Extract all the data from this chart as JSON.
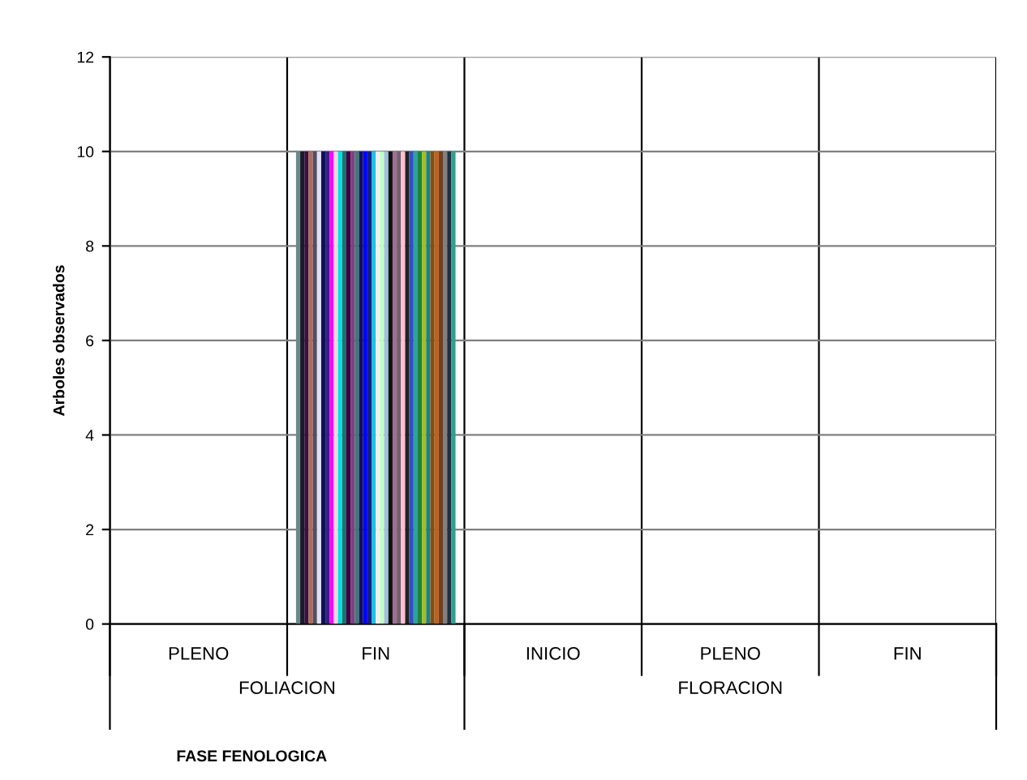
{
  "chart_data": {
    "type": "bar",
    "ylabel": "Arboles observados",
    "categories": [
      "PLENO",
      "FIN",
      "INICIO",
      "PLENO",
      "FIN"
    ],
    "annotations": [
      "FOLIACION",
      "FLORACION",
      "FASE FENOLOGICA"
    ],
    "ylim": [
      0,
      12
    ],
    "yticks": [
      0,
      2,
      4,
      6,
      8,
      10,
      12
    ],
    "grid": true,
    "legend": false,
    "series": [
      {
        "color": "#6a8a8a",
        "values": [
          null,
          10,
          null,
          null,
          null
        ]
      },
      {
        "color": "#1a1a2a",
        "values": [
          null,
          10,
          null,
          null,
          null
        ]
      },
      {
        "color": "#3a1040",
        "values": [
          null,
          10,
          null,
          null,
          null
        ]
      },
      {
        "color": "#b06a5a",
        "values": [
          null,
          10,
          null,
          null,
          null
        ]
      },
      {
        "color": "#505060",
        "values": [
          null,
          10,
          null,
          null,
          null
        ]
      },
      {
        "color": "#e0e0f0",
        "values": [
          null,
          10,
          null,
          null,
          null
        ]
      },
      {
        "color": "#10105a",
        "values": [
          null,
          10,
          null,
          null,
          null
        ]
      },
      {
        "color": "#302080",
        "values": [
          null,
          10,
          null,
          null,
          null
        ]
      },
      {
        "color": "#ff00ff",
        "values": [
          null,
          10,
          null,
          null,
          null
        ]
      },
      {
        "color": "#ffd0e0",
        "values": [
          null,
          10,
          null,
          null,
          null
        ]
      },
      {
        "color": "#00e0e0",
        "values": [
          null,
          10,
          null,
          null,
          null
        ]
      },
      {
        "color": "#207070",
        "values": [
          null,
          10,
          null,
          null,
          null
        ]
      },
      {
        "color": "#400040",
        "values": [
          null,
          10,
          null,
          null,
          null
        ]
      },
      {
        "color": "#804080",
        "values": [
          null,
          10,
          null,
          null,
          null
        ]
      },
      {
        "color": "#407878",
        "values": [
          null,
          10,
          null,
          null,
          null
        ]
      },
      {
        "color": "#101060",
        "values": [
          null,
          10,
          null,
          null,
          null
        ]
      },
      {
        "color": "#0000ff",
        "values": [
          null,
          10,
          null,
          null,
          null
        ]
      },
      {
        "color": "#102080",
        "values": [
          null,
          10,
          null,
          null,
          null
        ]
      },
      {
        "color": "#20c0e0",
        "values": [
          null,
          10,
          null,
          null,
          null
        ]
      },
      {
        "color": "#f0f0f0",
        "values": [
          null,
          10,
          null,
          null,
          null
        ]
      },
      {
        "color": "#c0ffc0",
        "values": [
          null,
          10,
          null,
          null,
          null
        ]
      },
      {
        "color": "#a0c0e0",
        "values": [
          null,
          10,
          null,
          null,
          null
        ]
      },
      {
        "color": "#101010",
        "values": [
          null,
          10,
          null,
          null,
          null
        ]
      },
      {
        "color": "#a07090",
        "values": [
          null,
          10,
          null,
          null,
          null
        ]
      },
      {
        "color": "#706070",
        "values": [
          null,
          10,
          null,
          null,
          null
        ]
      },
      {
        "color": "#ffc0d0",
        "values": [
          null,
          10,
          null,
          null,
          null
        ]
      },
      {
        "color": "#202020",
        "values": [
          null,
          10,
          null,
          null,
          null
        ]
      },
      {
        "color": "#3050c0",
        "values": [
          null,
          10,
          null,
          null,
          null
        ]
      },
      {
        "color": "#30a0a0",
        "values": [
          null,
          10,
          null,
          null,
          null
        ]
      },
      {
        "color": "#208040",
        "values": [
          null,
          10,
          null,
          null,
          null
        ]
      },
      {
        "color": "#a0c020",
        "values": [
          null,
          10,
          null,
          null,
          null
        ]
      },
      {
        "color": "#208080",
        "values": [
          null,
          10,
          null,
          null,
          null
        ]
      },
      {
        "color": "#805010",
        "values": [
          null,
          10,
          null,
          null,
          null
        ]
      },
      {
        "color": "#c06020",
        "values": [
          null,
          10,
          null,
          null,
          null
        ]
      },
      {
        "color": "#704020",
        "values": [
          null,
          10,
          null,
          null,
          null
        ]
      },
      {
        "color": "#808080",
        "values": [
          null,
          10,
          null,
          null,
          null
        ]
      },
      {
        "color": "#203040",
        "values": [
          null,
          10,
          null,
          null,
          null
        ]
      },
      {
        "color": "#30a090",
        "values": [
          null,
          10,
          null,
          null,
          null
        ]
      }
    ]
  }
}
